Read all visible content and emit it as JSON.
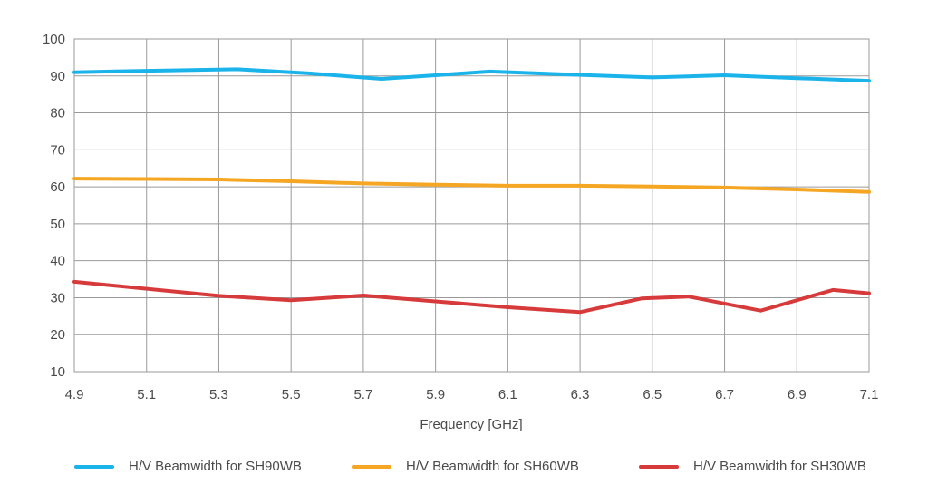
{
  "chart_data": {
    "type": "line",
    "title": "",
    "xlabel": "Frequency [GHz]",
    "ylabel": "",
    "xlim": [
      4.9,
      7.1
    ],
    "ylim": [
      10,
      100
    ],
    "x_ticks": [
      "4.9",
      "5.1",
      "5.3",
      "5.5",
      "5.7",
      "5.9",
      "6.1",
      "6.3",
      "6.5",
      "6.7",
      "6.9",
      "7.1"
    ],
    "y_ticks": [
      "10",
      "20",
      "30",
      "40",
      "50",
      "60",
      "70",
      "80",
      "90",
      "100"
    ],
    "grid": true,
    "legend_position": "bottom",
    "series": [
      {
        "name": "H/V Beamwidth for SH90WB",
        "color": "#1ab4ea",
        "x": [
          4.9,
          5.1,
          5.35,
          5.55,
          5.75,
          5.9,
          6.05,
          6.3,
          6.5,
          6.7,
          6.9,
          7.1
        ],
        "y": [
          91.0,
          91.4,
          91.8,
          90.7,
          89.2,
          90.2,
          91.2,
          90.3,
          89.6,
          90.2,
          89.4,
          88.7
        ]
      },
      {
        "name": "H/V Beamwidth for SH60WB",
        "color": "#f5a623",
        "x": [
          4.9,
          5.1,
          5.3,
          5.5,
          5.7,
          5.9,
          6.1,
          6.3,
          6.5,
          6.7,
          6.9,
          7.1
        ],
        "y": [
          62.2,
          62.1,
          62.0,
          61.5,
          60.9,
          60.6,
          60.3,
          60.3,
          60.1,
          59.8,
          59.3,
          58.6
        ]
      },
      {
        "name": "H/V Beamwidth for SH30WB",
        "color": "#d63a3a",
        "x": [
          4.9,
          5.3,
          5.5,
          5.7,
          5.9,
          6.1,
          6.3,
          6.47,
          6.6,
          6.8,
          7.0,
          7.1
        ],
        "y": [
          34.3,
          30.5,
          29.3,
          30.6,
          29.0,
          27.4,
          26.1,
          29.8,
          30.3,
          26.5,
          32.1,
          31.2
        ]
      }
    ]
  }
}
